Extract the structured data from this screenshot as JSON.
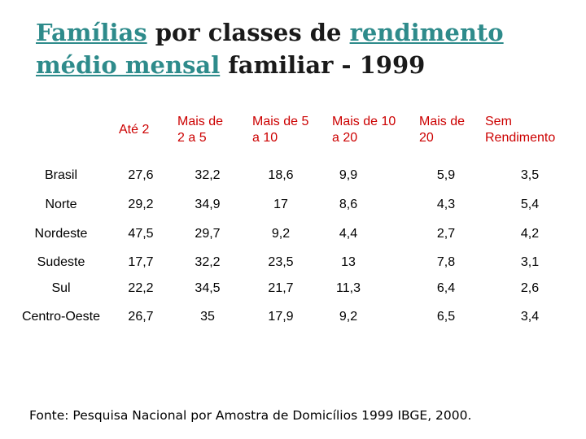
{
  "title": {
    "part1": "Famílias",
    "part2": " por classes de ",
    "part3": "rendimento",
    "part4": "médio mensal",
    "part5": " familiar - 1999"
  },
  "table": {
    "headers": [
      "Até 2",
      "Mais de\n2 a 5",
      "Mais de 5\na 10",
      "Mais de 10\na 20",
      "Mais de\n20",
      "Sem\nRendimento"
    ],
    "rows": [
      {
        "label": "Brasil",
        "values": [
          "27,6",
          "32,2",
          "18,6",
          "9,9",
          "5,9",
          "3,5"
        ]
      },
      {
        "label": "Norte",
        "values": [
          "29,2",
          "34,9",
          "17",
          "8,6",
          "4,3",
          "5,4"
        ]
      },
      {
        "label": "Nordeste",
        "values": [
          "47,5",
          "29,7",
          "9,2",
          "4,4",
          "2,7",
          "4,2"
        ]
      },
      {
        "label": "Sudeste",
        "values": [
          "17,7",
          "32,2",
          "23,5",
          "13",
          "7,8",
          "3,1"
        ]
      },
      {
        "label": "Sul",
        "values": [
          "22,2",
          "34,5",
          "21,7",
          "11,3",
          "6,4",
          "2,6"
        ]
      },
      {
        "label": "Centro-Oeste",
        "values": [
          "26,7",
          "35",
          "17,9",
          "9,2",
          "6,5",
          "3,4"
        ]
      }
    ]
  },
  "footer": "Fonte: Pesquisa Nacional por Amostra de Domicílios 1999 IBGE, 2000.",
  "colors": {
    "header_text": "#cc0000",
    "title_link": "#2e8b8b",
    "body_text": "#000000"
  }
}
